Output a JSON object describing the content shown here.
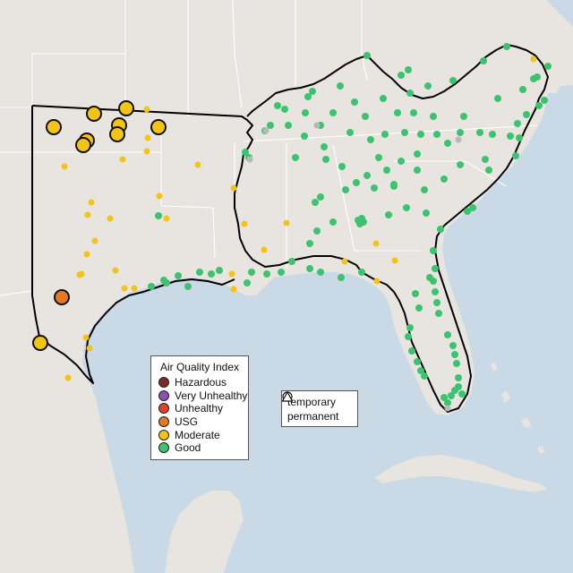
{
  "legend": {
    "title": "Air Quality Index",
    "categories": [
      {
        "id": "hazardous",
        "label": "Hazardous",
        "color": "#7e2a21"
      },
      {
        "id": "very-unhealthy",
        "label": "Very Unhealthy",
        "color": "#8f4fb3"
      },
      {
        "id": "unhealthy",
        "label": "Unhealthy",
        "color": "#e2402f"
      },
      {
        "id": "usg",
        "label": "USG",
        "color": "#e47922"
      },
      {
        "id": "moderate",
        "label": "Moderate",
        "color": "#f3c316"
      },
      {
        "id": "good",
        "label": "Good",
        "color": "#3cc36f"
      }
    ]
  },
  "site_type_legend": {
    "temporary": {
      "label": "temporary",
      "shape": "circle-icon"
    },
    "permanent": {
      "label": "permanent",
      "shape": "triangle-icon"
    }
  },
  "colors": {
    "water": "#c9d9e6",
    "land": "#e8e5e1",
    "focus_outline": "#000000",
    "state_borders": "#ffffff",
    "unreported": "#b8b8b8"
  }
}
